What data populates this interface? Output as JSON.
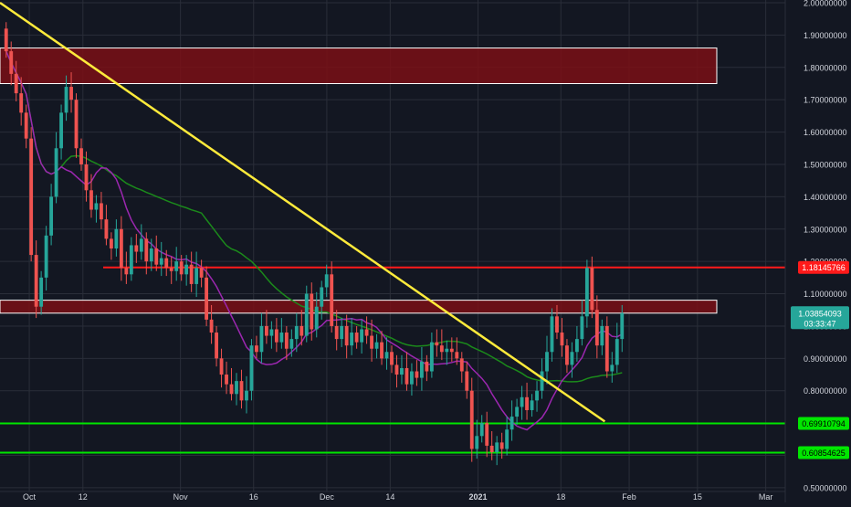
{
  "colors": {
    "background": "#131722",
    "grid": "#2a2e39",
    "axis_text": "#d1d4dc",
    "bull": "#26a69a",
    "bear": "#ef5350",
    "support": "#00e600",
    "resistance": "#ff1a1a",
    "trendline": "#ffeb3b",
    "zone_fill": "#7a0f15",
    "ma_slow": "#1b8a1b",
    "ma_fast": "#9c27b0",
    "price_label": "#26a69a"
  },
  "chart_data": {
    "type": "candlestick",
    "ylim": [
      0.48,
      2.0
    ],
    "y_ticks": [
      "2.00000000",
      "1.90000000",
      "1.80000000",
      "1.70000000",
      "1.60000000",
      "1.50000000",
      "1.40000000",
      "1.30000000",
      "1.20000000",
      "1.10000000",
      "1.00000000",
      "0.90000000",
      "0.80000000",
      "0.70000000",
      "0.60000000",
      "0.50000000"
    ],
    "y_tick_values": [
      2.0,
      1.9,
      1.8,
      1.7,
      1.6,
      1.5,
      1.4,
      1.3,
      1.2,
      1.1,
      1.0,
      0.9,
      0.8,
      0.7,
      0.6,
      0.5
    ],
    "x_domain": [
      "2020-09-25",
      "2021-03-05"
    ],
    "x_ticks": [
      {
        "label": "Oct",
        "date": "2020-10-01"
      },
      {
        "label": "12",
        "date": "2020-10-12"
      },
      {
        "label": "Nov",
        "date": "2020-11-01"
      },
      {
        "label": "16",
        "date": "2020-11-16"
      },
      {
        "label": "Dec",
        "date": "2020-12-01"
      },
      {
        "label": "14",
        "date": "2020-12-14"
      },
      {
        "label": "2021",
        "date": "2021-01-01"
      },
      {
        "label": "18",
        "date": "2021-01-18"
      },
      {
        "label": "Feb",
        "date": "2021-02-01"
      },
      {
        "label": "15",
        "date": "2021-02-15"
      },
      {
        "label": "Mar",
        "date": "2021-03-01"
      }
    ],
    "closes": [
      1.85,
      1.78,
      1.72,
      1.66,
      1.58,
      1.22,
      1.06,
      1.15,
      1.28,
      1.4,
      1.55,
      1.66,
      1.74,
      1.7,
      1.55,
      1.5,
      1.42,
      1.36,
      1.38,
      1.33,
      1.27,
      1.24,
      1.3,
      1.18,
      1.16,
      1.25,
      1.23,
      1.27,
      1.2,
      1.24,
      1.19,
      1.21,
      1.18,
      1.17,
      1.2,
      1.16,
      1.19,
      1.13,
      1.18,
      1.15,
      1.02,
      0.98,
      0.9,
      0.85,
      0.82,
      0.79,
      0.83,
      0.77,
      0.8,
      0.94,
      0.92,
      1.0,
      0.97,
      0.99,
      0.95,
      0.98,
      0.93,
      0.96,
      1.0,
      0.97,
      1.1,
      0.99,
      1.06,
      1.12,
      1.16,
      1.0,
      0.96,
      1.0,
      0.94,
      0.98,
      0.95,
      0.99,
      0.97,
      0.93,
      0.95,
      0.9,
      0.92,
      0.88,
      0.85,
      0.87,
      0.82,
      0.86,
      0.84,
      0.89,
      0.86,
      0.95,
      0.94,
      0.92,
      0.93,
      0.92,
      0.9,
      0.86,
      0.8,
      0.62,
      0.66,
      0.7,
      0.63,
      0.61,
      0.64,
      0.62,
      0.68,
      0.72,
      0.75,
      0.78,
      0.74,
      0.77,
      0.8,
      0.86,
      0.92,
      1.03,
      0.98,
      0.94,
      0.88,
      0.92,
      0.96,
      1.03,
      1.18,
      1.05,
      0.94,
      1.0,
      0.86,
      0.88,
      0.96,
      1.04
    ],
    "horizontal_levels": [
      "1.18145766",
      "0.69910794",
      "0.60854625"
    ],
    "horizontal_level_values": [
      1.18145766,
      0.69910794,
      0.60854625
    ],
    "zones": [
      [
        1.75,
        1.86
      ],
      [
        1.04,
        1.08
      ]
    ],
    "trendline": {
      "start_date": "2020-09-25",
      "start_value": 2.0,
      "end_date": "2021-01-27",
      "end_value": 0.705
    },
    "last_price": "1.03854093",
    "countdown": "03:33:47"
  }
}
